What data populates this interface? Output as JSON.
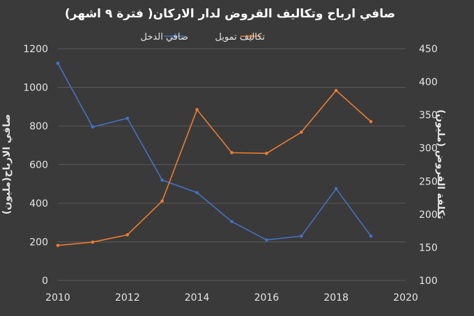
{
  "chart_data": {
    "type": "line",
    "title": "صافي ارباح وتكاليف القروض لدار الاركان( فترة ٩ اشهر)",
    "x": [
      2010,
      2011,
      2012,
      2013,
      2014,
      2015,
      2016,
      2017,
      2018,
      2019
    ],
    "xlim": [
      2010,
      2020
    ],
    "x_ticks": [
      "2010",
      "2012",
      "2014",
      "2016",
      "2018",
      "2020"
    ],
    "ylabel": "صافي الارباح(مليون)",
    "ylim": [
      0,
      1200
    ],
    "y_ticks": [
      "0",
      "200",
      "400",
      "600",
      "800",
      "1000",
      "1200"
    ],
    "y2label": "تكلفة القروض (مليون)",
    "y2lim": [
      100,
      450
    ],
    "y2_ticks": [
      "100",
      "150",
      "200",
      "250",
      "300",
      "350",
      "400",
      "450"
    ],
    "grid": true,
    "legend_position": "top",
    "series": [
      {
        "name": "صافي الدخل",
        "axis": "left",
        "color": "#4472c4",
        "values": [
          1125,
          795,
          840,
          520,
          455,
          305,
          210,
          230,
          475,
          230
        ]
      },
      {
        "name": "تكاليف تمويل",
        "axis": "right",
        "color": "#ed7d31",
        "values": [
          153,
          158,
          169,
          220,
          358,
          293,
          292,
          324,
          387,
          340
        ]
      }
    ]
  }
}
